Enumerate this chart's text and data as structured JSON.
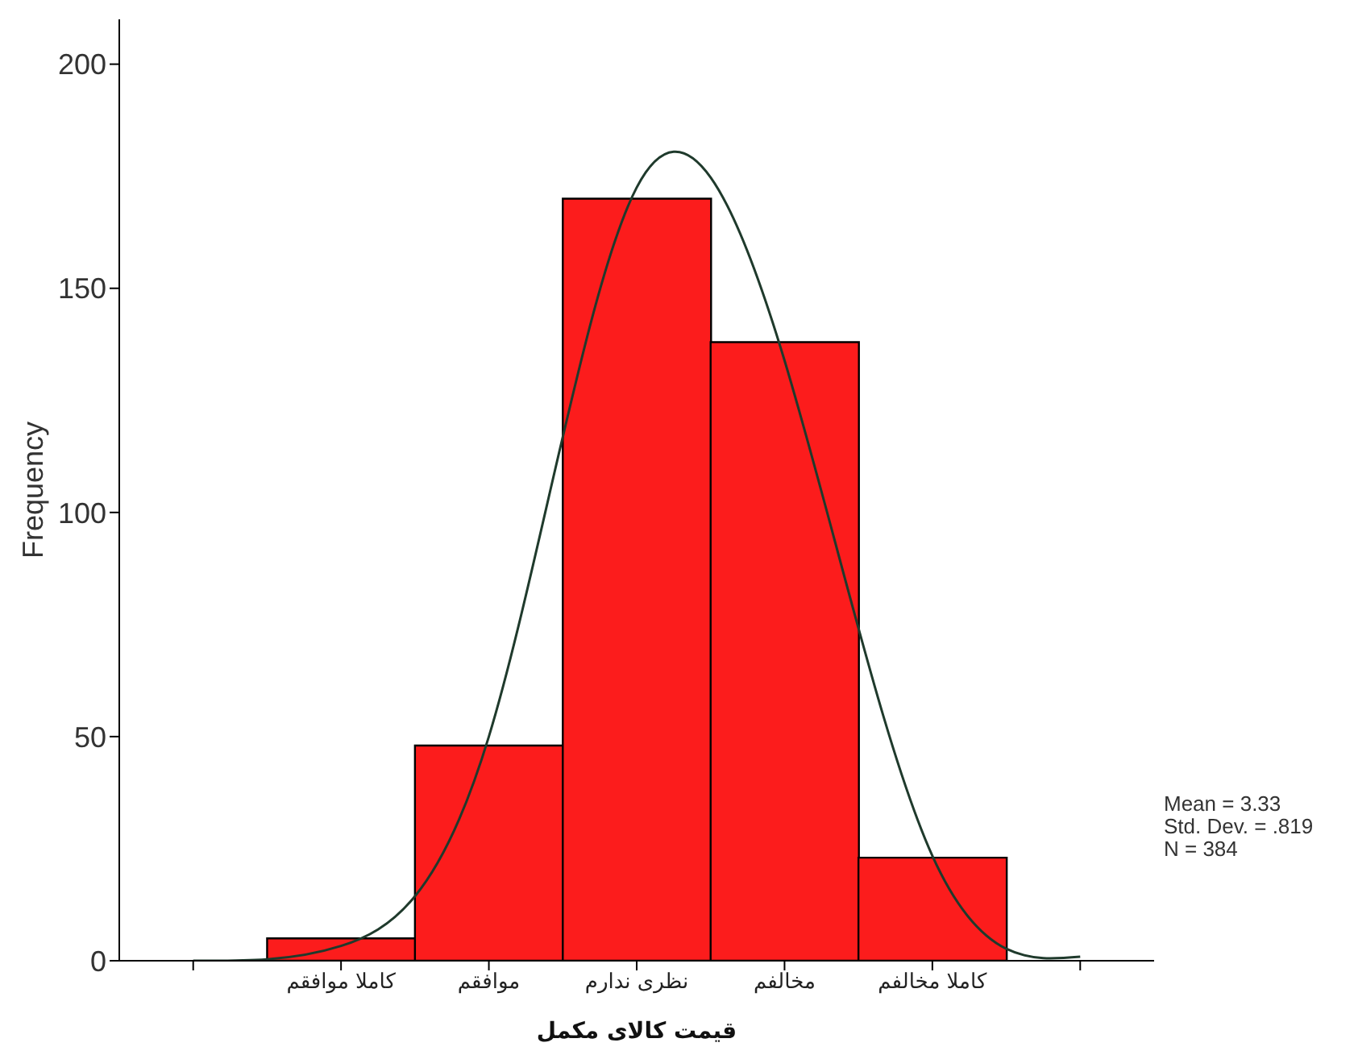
{
  "chart_data": {
    "type": "bar",
    "xlabel": "قیمت کالای مکمل",
    "ylabel": "Frequency",
    "categories": [
      null,
      "کاملا موافقم",
      "موافقم",
      "نظری ندارم",
      "مخالفم",
      "کاملا مخالفم",
      null
    ],
    "series": [
      {
        "color": "#fc1c1c",
        "values": [
          null,
          5,
          48,
          170,
          138,
          23,
          null
        ]
      },
      {
        "type": "line",
        "color": "#1f3a2c",
        "values": [
          0,
          3.3,
          50,
          172.5,
          133.9,
          23.4,
          0.9
        ]
      }
    ],
    "ylim": [
      0,
      210
    ],
    "yticks": [
      0,
      50,
      100,
      150,
      200
    ],
    "marker": "none",
    "annotations": [
      "Mean = 3.33",
      "Std. Dev. = .819",
      "N = 384"
    ]
  }
}
